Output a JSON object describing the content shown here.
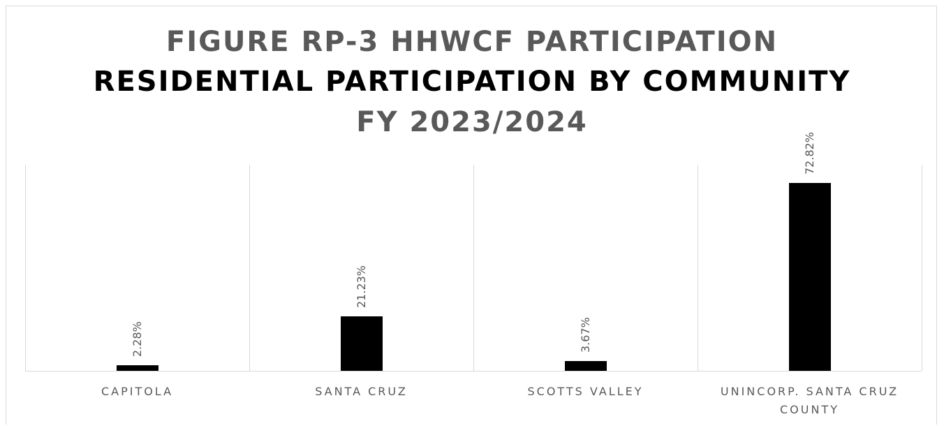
{
  "chart_data": {
    "type": "bar",
    "title": [
      "FIGURE RP-3 HHWCF PARTICIPATION",
      "RESIDENTIAL PARTICIPATION BY COMMUNITY",
      "FY 2023/2024"
    ],
    "title_colors": [
      "#595959",
      "#000000",
      "#595959"
    ],
    "categories": [
      "CAPITOLA",
      "SANTA CRUZ",
      "SCOTTS VALLEY",
      "UNINCORP. SANTA CRUZ COUNTY"
    ],
    "values": [
      2.28,
      21.23,
      3.67,
      72.82
    ],
    "value_labels": [
      "2.28%",
      "21.23%",
      "3.67%",
      "72.82%"
    ],
    "color": "#000000",
    "ylim": [
      0,
      80
    ]
  }
}
